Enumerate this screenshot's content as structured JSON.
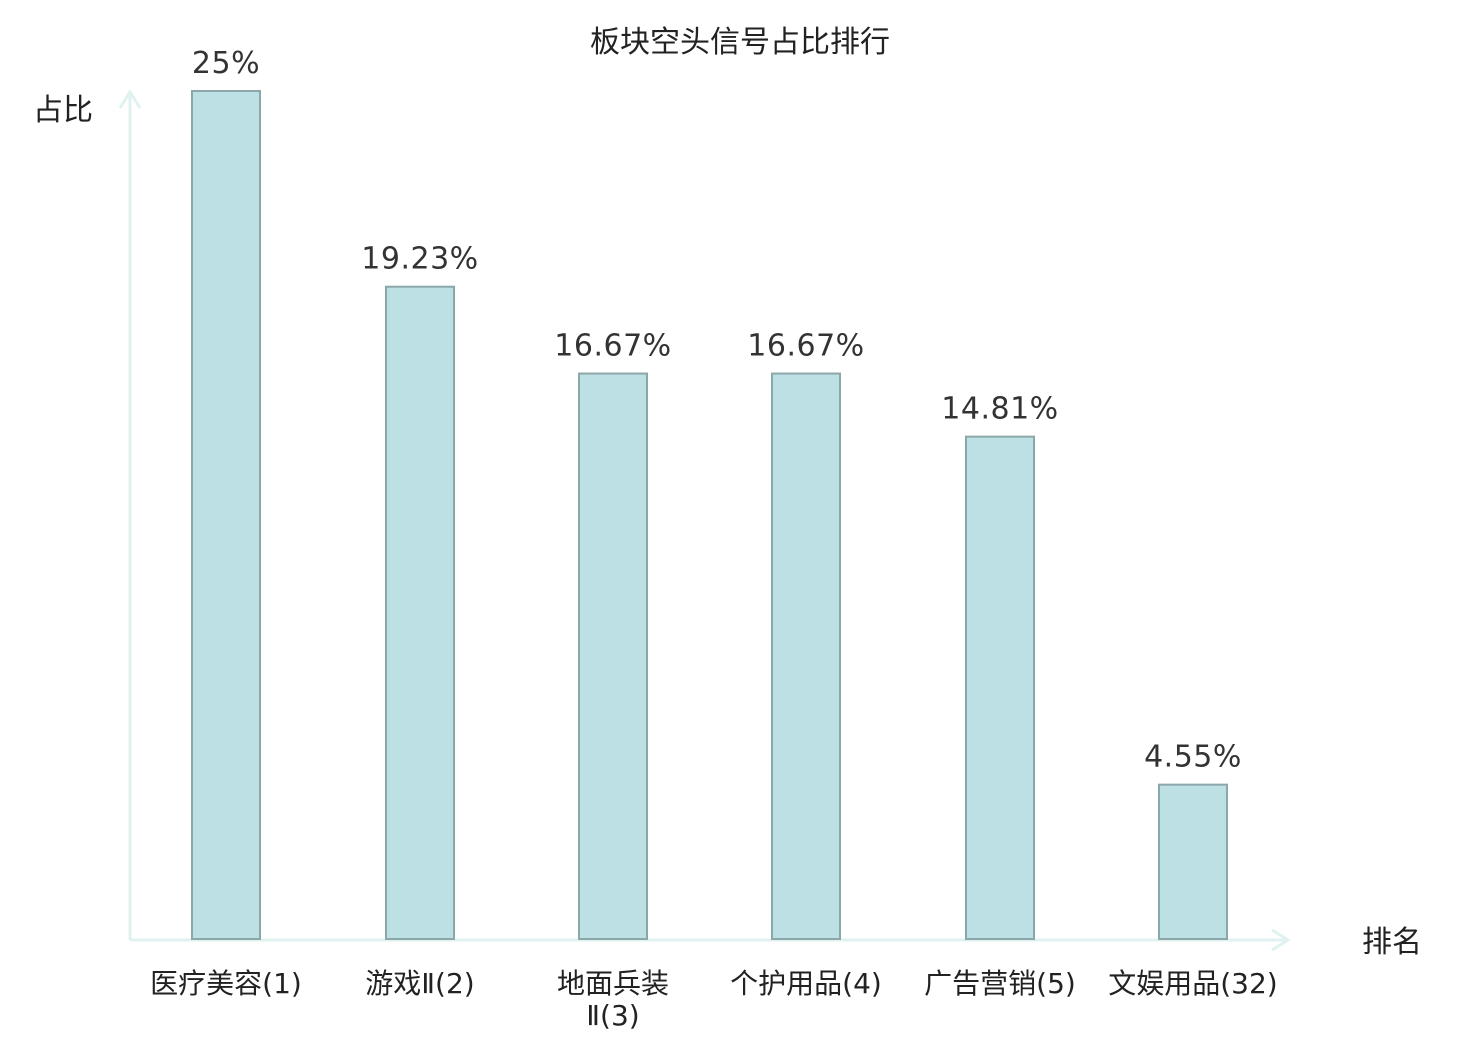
{
  "chart_data": {
    "type": "bar",
    "title": "板块空头信号占比排行",
    "ylabel": "占比",
    "xlabel": "排名",
    "categories": [
      "医疗美容(1)",
      "游戏Ⅱ(2)",
      "地面兵装Ⅱ(3)",
      "个护用品(4)",
      "广告营销(5)",
      "文娱用品(32)"
    ],
    "values": [
      25,
      19.23,
      16.67,
      16.67,
      14.81,
      4.55
    ],
    "value_labels": [
      "25%",
      "19.23%",
      "16.67%",
      "16.67%",
      "14.81%",
      "4.55%"
    ],
    "ylim": [
      0,
      25
    ],
    "grid": false,
    "legend": "none",
    "highlight_index": 5
  },
  "colors": {
    "bar_fill": "#bce0e3",
    "bar_stroke": "#8ba7aa",
    "axis": "#e0f2f0",
    "text": "#222222",
    "highlight": "#e00000"
  }
}
